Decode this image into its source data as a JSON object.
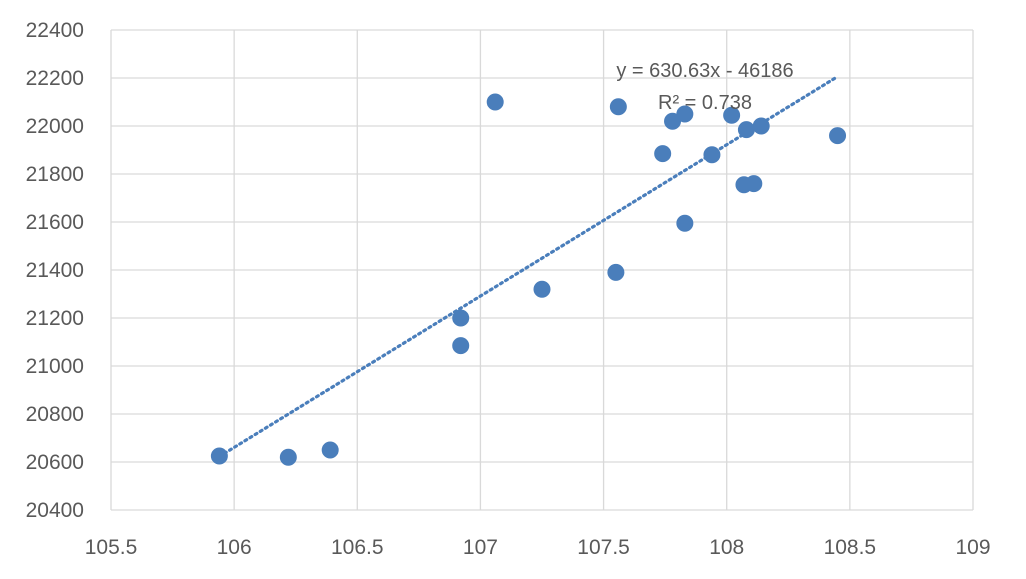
{
  "chart_data": {
    "type": "scatter",
    "title": "",
    "xlabel": "",
    "ylabel": "",
    "xlim": [
      105.5,
      109
    ],
    "ylim": [
      20400,
      22400
    ],
    "x_ticks": [
      105.5,
      106,
      106.5,
      107,
      107.5,
      108,
      108.5,
      109
    ],
    "x_tick_labels": [
      "105.5",
      "106",
      "106.5",
      "107",
      "107.5",
      "108",
      "108.5",
      "109"
    ],
    "y_ticks": [
      20400,
      20600,
      20800,
      21000,
      21200,
      21400,
      21600,
      21800,
      22000,
      22200,
      22400
    ],
    "y_tick_labels": [
      "20400",
      "20600",
      "20800",
      "21000",
      "21200",
      "21400",
      "21600",
      "21800",
      "22000",
      "22200",
      "22400"
    ],
    "grid": true,
    "legend": "none",
    "series": [
      {
        "color": "#4a7ebb",
        "points": [
          {
            "x": 105.94,
            "y": 20625
          },
          {
            "x": 106.22,
            "y": 20620
          },
          {
            "x": 106.39,
            "y": 20650
          },
          {
            "x": 106.92,
            "y": 21200
          },
          {
            "x": 106.92,
            "y": 21085
          },
          {
            "x": 107.06,
            "y": 22100
          },
          {
            "x": 107.25,
            "y": 21320
          },
          {
            "x": 107.55,
            "y": 21390
          },
          {
            "x": 107.56,
            "y": 22080
          },
          {
            "x": 107.74,
            "y": 21885
          },
          {
            "x": 107.78,
            "y": 22020
          },
          {
            "x": 107.83,
            "y": 22050
          },
          {
            "x": 107.83,
            "y": 21595
          },
          {
            "x": 107.94,
            "y": 21880
          },
          {
            "x": 108.02,
            "y": 22045
          },
          {
            "x": 108.07,
            "y": 21755
          },
          {
            "x": 108.08,
            "y": 21985
          },
          {
            "x": 108.11,
            "y": 21760
          },
          {
            "x": 108.14,
            "y": 22000
          },
          {
            "x": 108.45,
            "y": 21960
          }
        ]
      }
    ],
    "trendline": {
      "type": "linear",
      "style": "dotted",
      "color": "#4a7ebb",
      "slope": 630.63,
      "intercept": -46186,
      "x_range": [
        105.94,
        108.45
      ],
      "equation_text": "y = 630.63x - 46186",
      "r2_text": "R² = 0.738"
    }
  }
}
